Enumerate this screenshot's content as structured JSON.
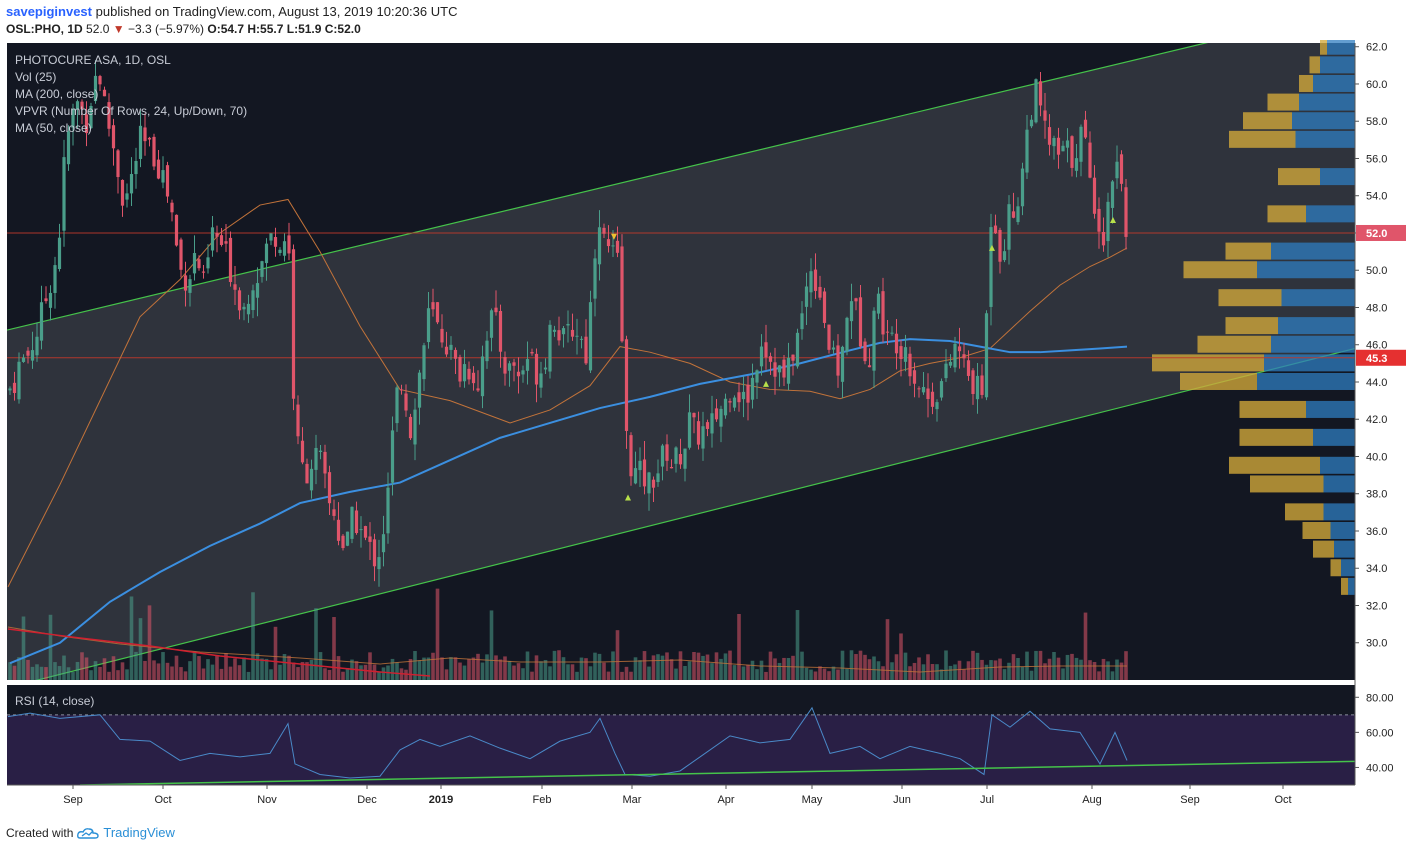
{
  "header": {
    "user": "savepiginvest",
    "published": "published on TradingView.com, August 13, 2019 10:20:36 UTC",
    "symbol": "OSL:PHO, 1D",
    "last": "52.0",
    "change": "−3.3 (−5.97%)",
    "ohlc": "O:54.7 H:55.7 L:51.9 C:52.0"
  },
  "footer": {
    "created": "Created with",
    "brand": "TradingView"
  },
  "colors": {
    "background": "#131722",
    "up": "#4a9e8a",
    "down": "#e0556a",
    "ma200": "#3b8fe0",
    "ma50": "#c2733a",
    "channel": "#45c34a",
    "rsi": "#4a89c8",
    "vp_up": "#d4a93a",
    "vp_down": "#2f7ec0"
  },
  "chart_data": {
    "type": "candlestick",
    "title": "PHOTOCURE ASA, 1D, OSL",
    "indicators": [
      "Vol (25)",
      "MA (200, close)",
      "VPVR (Number Of Rows, 24, Up/Down, 70)",
      "MA (50, close)"
    ],
    "x_ticks": [
      "Sep",
      "Oct",
      "Nov",
      "Dec",
      "2019",
      "Feb",
      "Mar",
      "Apr",
      "May",
      "Jun",
      "Jul",
      "Aug",
      "Sep",
      "Oct"
    ],
    "y_ticks": [
      "62.0",
      "60.0",
      "58.0",
      "56.0",
      "54.0",
      "52.0",
      "50.0",
      "48.0",
      "46.0",
      "44.0",
      "42.0",
      "40.0",
      "38.0",
      "36.0",
      "34.0",
      "32.0",
      "30.0"
    ],
    "ylim": [
      28.0,
      62.2
    ],
    "price_labels": [
      "52.0",
      "45.3"
    ],
    "horizontal_lines": [
      52.0,
      45.3
    ],
    "price_path": [
      [
        0,
        44.5
      ],
      [
        8,
        43.5
      ],
      [
        14,
        44.0
      ],
      [
        20,
        45.0
      ],
      [
        28,
        45.5
      ],
      [
        36,
        46.5
      ],
      [
        46,
        48.5
      ],
      [
        58,
        51.0
      ],
      [
        64,
        55.5
      ],
      [
        70,
        58.0
      ],
      [
        78,
        59.0
      ],
      [
        86,
        58.0
      ],
      [
        92,
        59.5
      ],
      [
        98,
        61.0
      ],
      [
        104,
        59.0
      ],
      [
        110,
        57.5
      ],
      [
        116,
        56.0
      ],
      [
        124,
        53.5
      ],
      [
        132,
        55.0
      ],
      [
        140,
        57.0
      ],
      [
        148,
        56.5
      ],
      [
        156,
        56.0
      ],
      [
        164,
        55.0
      ],
      [
        172,
        53.0
      ],
      [
        180,
        50.0
      ],
      [
        188,
        49.5
      ],
      [
        196,
        51.0
      ],
      [
        204,
        49.0
      ],
      [
        212,
        52.0
      ],
      [
        220,
        51.5
      ],
      [
        228,
        50.5
      ],
      [
        236,
        49.0
      ],
      [
        244,
        48.0
      ],
      [
        252,
        49.5
      ],
      [
        260,
        50.0
      ],
      [
        268,
        51.5
      ],
      [
        276,
        52.0
      ],
      [
        282,
        51.0
      ],
      [
        288,
        53.0
      ],
      [
        292,
        44.5
      ],
      [
        298,
        40.5
      ],
      [
        304,
        39.0
      ],
      [
        310,
        39.5
      ],
      [
        316,
        40.0
      ],
      [
        322,
        39.5
      ],
      [
        328,
        37.5
      ],
      [
        334,
        37.0
      ],
      [
        340,
        35.5
      ],
      [
        346,
        35.0
      ],
      [
        352,
        36.5
      ],
      [
        358,
        36.5
      ],
      [
        364,
        35.5
      ],
      [
        370,
        35.0
      ],
      [
        376,
        34.5
      ],
      [
        382,
        35.5
      ],
      [
        388,
        38.0
      ],
      [
        394,
        42.0
      ],
      [
        400,
        44.5
      ],
      [
        406,
        43.0
      ],
      [
        412,
        41.0
      ],
      [
        418,
        44.0
      ],
      [
        424,
        46.0
      ],
      [
        430,
        48.0
      ],
      [
        436,
        47.0
      ],
      [
        442,
        46.5
      ],
      [
        448,
        46.0
      ],
      [
        454,
        45.0
      ],
      [
        460,
        44.5
      ],
      [
        466,
        45.0
      ],
      [
        472,
        44.5
      ],
      [
        478,
        44.0
      ],
      [
        484,
        46.0
      ],
      [
        490,
        47.5
      ],
      [
        496,
        47.0
      ],
      [
        502,
        45.5
      ],
      [
        508,
        44.5
      ],
      [
        514,
        45.0
      ],
      [
        520,
        44.0
      ],
      [
        526,
        45.5
      ],
      [
        532,
        45.0
      ],
      [
        538,
        44.5
      ],
      [
        544,
        45.0
      ],
      [
        550,
        47.0
      ],
      [
        556,
        47.5
      ],
      [
        562,
        46.0
      ],
      [
        568,
        46.5
      ],
      [
        574,
        47.0
      ],
      [
        580,
        46.5
      ],
      [
        586,
        45.5
      ],
      [
        592,
        49.0
      ],
      [
        598,
        53.5
      ],
      [
        604,
        51.5
      ],
      [
        610,
        51.0
      ],
      [
        616,
        50.5
      ],
      [
        620,
        50.0
      ],
      [
        624,
        42.5
      ],
      [
        628,
        40.0
      ],
      [
        632,
        39.5
      ],
      [
        636,
        39.0
      ],
      [
        642,
        39.0
      ],
      [
        648,
        38.5
      ],
      [
        654,
        39.0
      ],
      [
        660,
        39.5
      ],
      [
        666,
        40.5
      ],
      [
        672,
        39.5
      ],
      [
        678,
        40.0
      ],
      [
        684,
        40.5
      ],
      [
        690,
        42.0
      ],
      [
        696,
        41.0
      ],
      [
        702,
        41.5
      ],
      [
        708,
        41.0
      ],
      [
        714,
        42.0
      ],
      [
        720,
        42.5
      ],
      [
        726,
        43.0
      ],
      [
        732,
        44.0
      ],
      [
        738,
        43.5
      ],
      [
        744,
        43.0
      ],
      [
        750,
        43.5
      ],
      [
        756,
        45.0
      ],
      [
        762,
        46.5
      ],
      [
        768,
        45.5
      ],
      [
        774,
        45.0
      ],
      [
        780,
        44.5
      ],
      [
        786,
        44.0
      ],
      [
        792,
        45.5
      ],
      [
        798,
        46.5
      ],
      [
        804,
        48.0
      ],
      [
        810,
        50.5
      ],
      [
        816,
        49.5
      ],
      [
        822,
        48.5
      ],
      [
        828,
        46.0
      ],
      [
        834,
        45.0
      ],
      [
        840,
        44.5
      ],
      [
        846,
        47.0
      ],
      [
        852,
        49.0
      ],
      [
        858,
        47.0
      ],
      [
        864,
        46.0
      ],
      [
        870,
        45.5
      ],
      [
        876,
        49.0
      ],
      [
        882,
        47.5
      ],
      [
        888,
        46.0
      ],
      [
        894,
        46.5
      ],
      [
        900,
        46.0
      ],
      [
        906,
        46.0
      ],
      [
        912,
        44.5
      ],
      [
        918,
        44.0
      ],
      [
        924,
        43.5
      ],
      [
        930,
        43.0
      ],
      [
        936,
        43.5
      ],
      [
        942,
        44.0
      ],
      [
        948,
        44.5
      ],
      [
        954,
        46.0
      ],
      [
        960,
        45.5
      ],
      [
        966,
        44.5
      ],
      [
        972,
        44.0
      ],
      [
        978,
        43.5
      ],
      [
        984,
        43.5
      ],
      [
        990,
        53.0
      ],
      [
        996,
        52.5
      ],
      [
        1002,
        50.5
      ],
      [
        1008,
        53.0
      ],
      [
        1014,
        53.0
      ],
      [
        1020,
        54.5
      ],
      [
        1026,
        57.0
      ],
      [
        1032,
        59.0
      ],
      [
        1036,
        59.5
      ],
      [
        1042,
        58.0
      ],
      [
        1048,
        57.0
      ],
      [
        1054,
        56.5
      ],
      [
        1060,
        56.0
      ],
      [
        1066,
        56.5
      ],
      [
        1072,
        56.0
      ],
      [
        1078,
        57.0
      ],
      [
        1084,
        57.5
      ],
      [
        1090,
        54.5
      ],
      [
        1096,
        53.5
      ],
      [
        1102,
        52.0
      ],
      [
        1106,
        51.5
      ],
      [
        1110,
        55.0
      ],
      [
        1116,
        56.0
      ],
      [
        1122,
        54.7
      ],
      [
        1127,
        52.0
      ]
    ],
    "ma200_path": [
      [
        10,
        28.9
      ],
      [
        60,
        30.0
      ],
      [
        110,
        32.2
      ],
      [
        160,
        33.8
      ],
      [
        210,
        35.2
      ],
      [
        260,
        36.4
      ],
      [
        300,
        37.5
      ],
      [
        350,
        38.1
      ],
      [
        400,
        38.6
      ],
      [
        450,
        39.8
      ],
      [
        500,
        41.0
      ],
      [
        550,
        41.8
      ],
      [
        600,
        42.6
      ],
      [
        650,
        43.2
      ],
      [
        700,
        43.9
      ],
      [
        750,
        44.4
      ],
      [
        800,
        45.0
      ],
      [
        850,
        45.7
      ],
      [
        880,
        46.1
      ],
      [
        910,
        46.3
      ],
      [
        950,
        46.2
      ],
      [
        980,
        45.9
      ],
      [
        1010,
        45.6
      ],
      [
        1040,
        45.6
      ],
      [
        1070,
        45.7
      ],
      [
        1100,
        45.8
      ],
      [
        1127,
        45.9
      ]
    ],
    "ma50_path": [
      [
        8,
        33.0
      ],
      [
        60,
        38.5
      ],
      [
        100,
        43.0
      ],
      [
        140,
        47.5
      ],
      [
        180,
        49.5
      ],
      [
        220,
        52.0
      ],
      [
        260,
        53.5
      ],
      [
        288,
        53.8
      ],
      [
        320,
        51.0
      ],
      [
        360,
        47.0
      ],
      [
        400,
        43.6
      ],
      [
        450,
        43.0
      ],
      [
        490,
        42.2
      ],
      [
        510,
        41.8
      ],
      [
        550,
        42.5
      ],
      [
        590,
        43.8
      ],
      [
        620,
        45.9
      ],
      [
        650,
        45.6
      ],
      [
        690,
        45.0
      ],
      [
        730,
        44.0
      ],
      [
        770,
        43.6
      ],
      [
        810,
        43.5
      ],
      [
        840,
        43.1
      ],
      [
        870,
        43.6
      ],
      [
        900,
        44.6
      ],
      [
        930,
        45.0
      ],
      [
        960,
        45.3
      ],
      [
        990,
        45.8
      ],
      [
        1030,
        47.8
      ],
      [
        1060,
        49.2
      ],
      [
        1090,
        50.2
      ],
      [
        1110,
        50.7
      ],
      [
        1127,
        51.2
      ]
    ],
    "channel_upper": [
      [
        8,
        46.8
      ],
      [
        1190,
        62.0
      ]
    ],
    "channel_lower": [
      [
        8,
        27.6
      ],
      [
        1355,
        45.8
      ]
    ],
    "markers": [
      {
        "x": 614,
        "price": 51.8,
        "dir": "down"
      },
      {
        "x": 628,
        "price": 37.8,
        "dir": "up"
      },
      {
        "x": 766,
        "price": 43.9,
        "dir": "up"
      },
      {
        "x": 992,
        "price": 51.2,
        "dir": "up"
      },
      {
        "x": 1113,
        "price": 52.7,
        "dir": "up"
      }
    ],
    "volume_profile": [
      {
        "price": 62.0,
        "up": 0.1,
        "down": 0.4
      },
      {
        "price": 61.0,
        "up": 0.15,
        "down": 0.5
      },
      {
        "price": 60.0,
        "up": 0.2,
        "down": 0.6
      },
      {
        "price": 59.0,
        "up": 0.45,
        "down": 0.8
      },
      {
        "price": 58.0,
        "up": 0.7,
        "down": 0.9
      },
      {
        "price": 57.0,
        "up": 0.95,
        "down": 0.85
      },
      {
        "price": 55.0,
        "up": 0.6,
        "down": 0.5
      },
      {
        "price": 53.0,
        "up": 0.55,
        "down": 0.7
      },
      {
        "price": 51.0,
        "up": 0.65,
        "down": 1.2
      },
      {
        "price": 50.0,
        "up": 1.05,
        "down": 1.4
      },
      {
        "price": 48.5,
        "up": 0.9,
        "down": 1.05
      },
      {
        "price": 47.0,
        "up": 0.75,
        "down": 1.1
      },
      {
        "price": 46.0,
        "up": 1.05,
        "down": 1.2
      },
      {
        "price": 45.0,
        "up": 1.6,
        "down": 1.3
      },
      {
        "price": 44.0,
        "up": 1.1,
        "down": 1.4
      },
      {
        "price": 42.5,
        "up": 0.95,
        "down": 0.7
      },
      {
        "price": 41.0,
        "up": 1.05,
        "down": 0.6
      },
      {
        "price": 39.5,
        "up": 1.3,
        "down": 0.5
      },
      {
        "price": 38.5,
        "up": 1.05,
        "down": 0.45
      },
      {
        "price": 37.0,
        "up": 0.55,
        "down": 0.45
      },
      {
        "price": 36.0,
        "up": 0.4,
        "down": 0.35
      },
      {
        "price": 35.0,
        "up": 0.3,
        "down": 0.3
      },
      {
        "price": 34.0,
        "up": 0.15,
        "down": 0.2
      },
      {
        "price": 33.0,
        "up": 0.1,
        "down": 0.1
      }
    ],
    "rsi": {
      "label": "RSI (14, close)",
      "y_ticks": [
        "80.00",
        "60.00",
        "40.00"
      ],
      "ylim": [
        30,
        87
      ],
      "bands": [
        70,
        30
      ],
      "path": [
        [
          8,
          69
        ],
        [
          30,
          71
        ],
        [
          60,
          68
        ],
        [
          100,
          70
        ],
        [
          120,
          56
        ],
        [
          150,
          55
        ],
        [
          180,
          44
        ],
        [
          210,
          48
        ],
        [
          240,
          46
        ],
        [
          270,
          48
        ],
        [
          288,
          65
        ],
        [
          295,
          42
        ],
        [
          320,
          36
        ],
        [
          350,
          34
        ],
        [
          380,
          35
        ],
        [
          400,
          50
        ],
        [
          420,
          56
        ],
        [
          440,
          52
        ],
        [
          470,
          58
        ],
        [
          500,
          51
        ],
        [
          530,
          45
        ],
        [
          560,
          55
        ],
        [
          590,
          60
        ],
        [
          600,
          68
        ],
        [
          615,
          48
        ],
        [
          625,
          36
        ],
        [
          650,
          35
        ],
        [
          680,
          38
        ],
        [
          700,
          46
        ],
        [
          730,
          58
        ],
        [
          760,
          54
        ],
        [
          790,
          56
        ],
        [
          812,
          74
        ],
        [
          830,
          48
        ],
        [
          860,
          52
        ],
        [
          880,
          45
        ],
        [
          910,
          52
        ],
        [
          940,
          48
        ],
        [
          960,
          45
        ],
        [
          984,
          36
        ],
        [
          992,
          70
        ],
        [
          1010,
          63
        ],
        [
          1030,
          72
        ],
        [
          1050,
          62
        ],
        [
          1080,
          60
        ],
        [
          1100,
          42
        ],
        [
          1115,
          60
        ],
        [
          1127,
          44
        ]
      ],
      "trend": [
        [
          80,
          30
        ],
        [
          1355,
          43.5
        ]
      ]
    }
  }
}
